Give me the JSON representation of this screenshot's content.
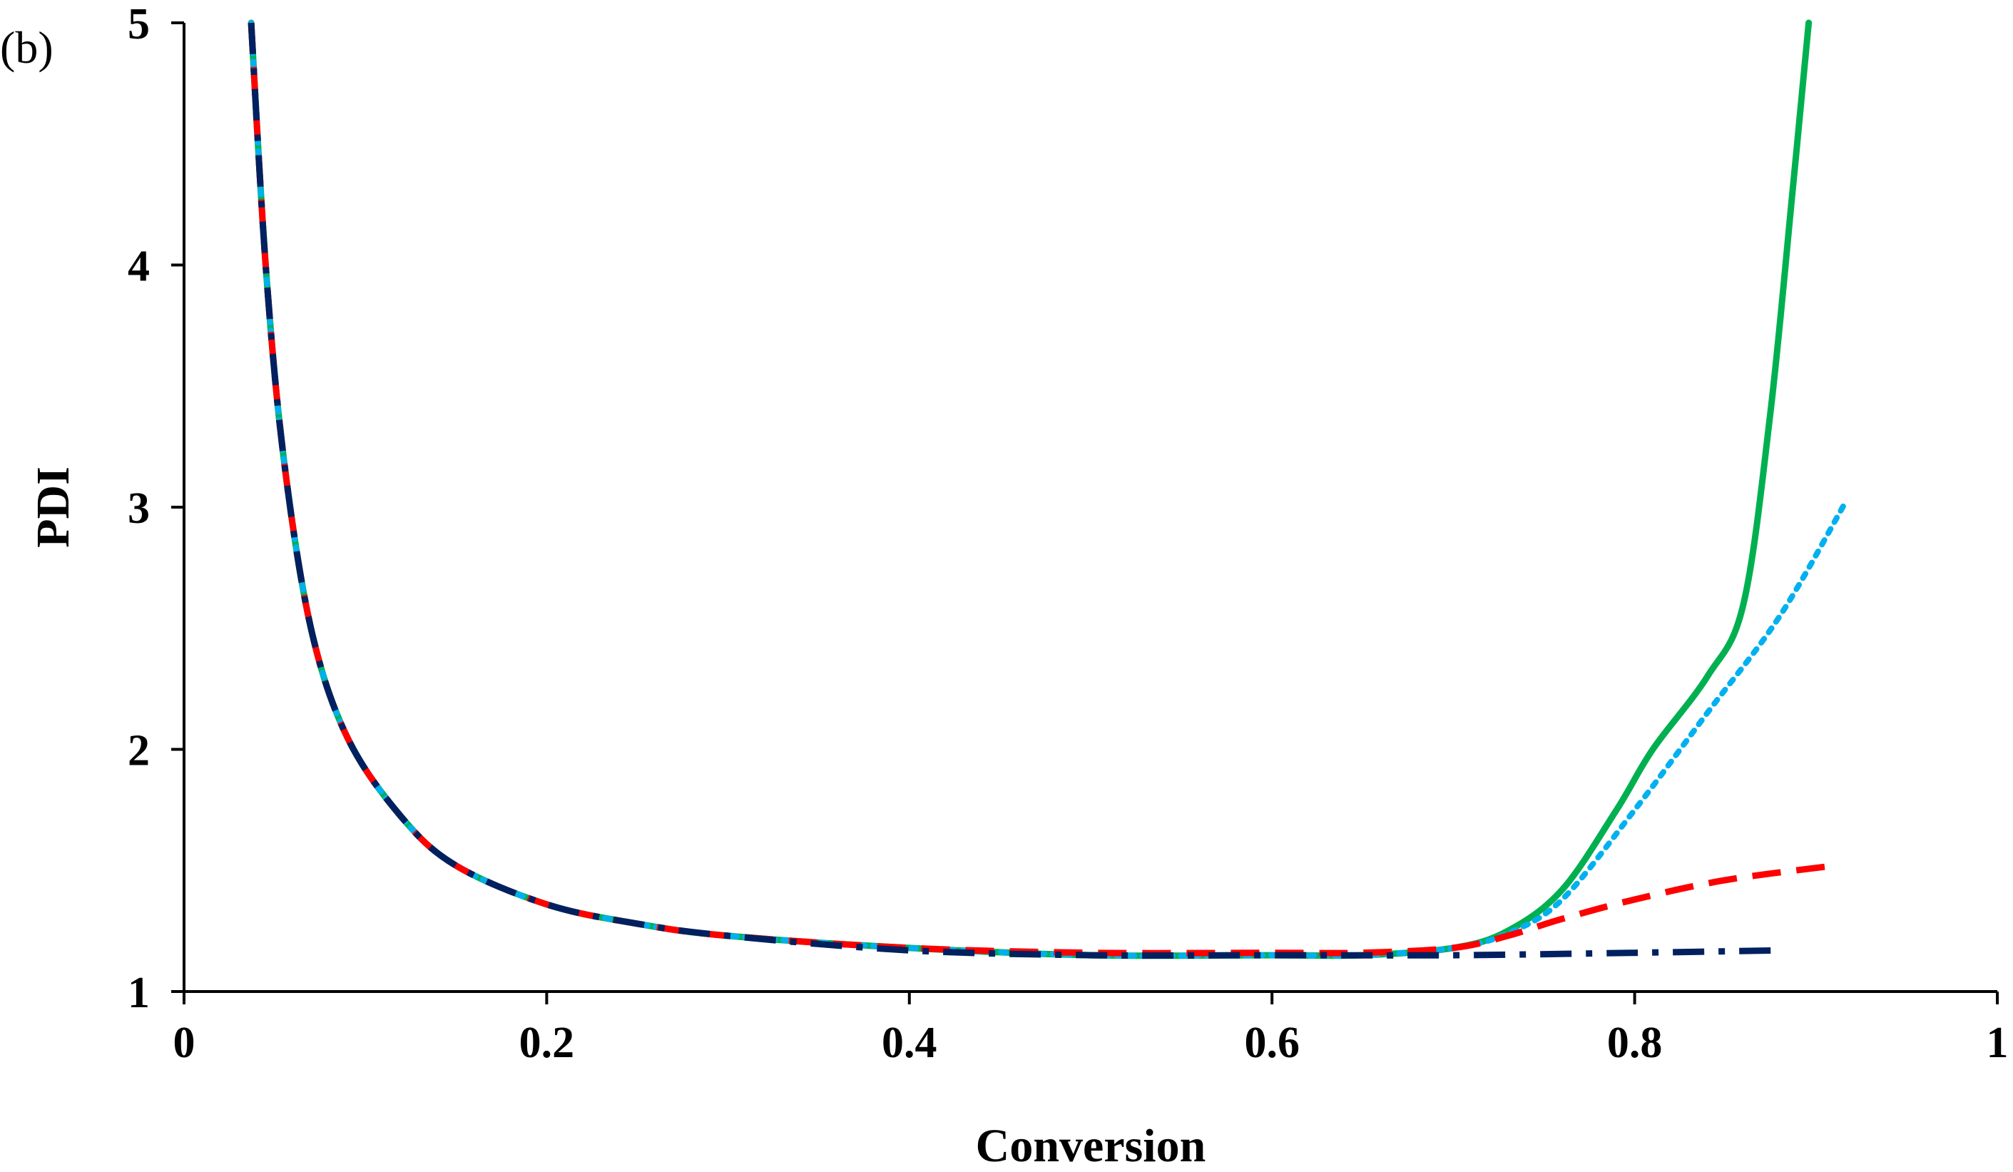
{
  "chart_data": {
    "type": "line",
    "panel_label": "(b)",
    "title": "",
    "xlabel": "Conversion",
    "ylabel": "PDI",
    "xlim": [
      0,
      1
    ],
    "ylim": [
      1,
      5
    ],
    "x_ticks": [
      0,
      0.2,
      0.4,
      0.6,
      0.8,
      1
    ],
    "y_ticks": [
      1,
      2,
      3,
      4,
      5
    ],
    "x_tick_labels": [
      "0",
      "0.2",
      "0.4",
      "0.6",
      "0.8",
      "1"
    ],
    "y_tick_labels": [
      "1",
      "2",
      "3",
      "4",
      "5"
    ],
    "grid": false,
    "legend": "none",
    "series": [
      {
        "color": "#00b050",
        "style": "solid",
        "points": [
          [
            0.037,
            5.0
          ],
          [
            0.045,
            4.0
          ],
          [
            0.055,
            3.2
          ],
          [
            0.07,
            2.5
          ],
          [
            0.09,
            2.05
          ],
          [
            0.12,
            1.72
          ],
          [
            0.15,
            1.52
          ],
          [
            0.2,
            1.36
          ],
          [
            0.25,
            1.28
          ],
          [
            0.3,
            1.23
          ],
          [
            0.4,
            1.18
          ],
          [
            0.5,
            1.15
          ],
          [
            0.6,
            1.15
          ],
          [
            0.65,
            1.15
          ],
          [
            0.7,
            1.18
          ],
          [
            0.73,
            1.25
          ],
          [
            0.76,
            1.42
          ],
          [
            0.79,
            1.75
          ],
          [
            0.81,
            2.0
          ],
          [
            0.84,
            2.3
          ],
          [
            0.86,
            2.6
          ],
          [
            0.875,
            3.4
          ],
          [
            0.887,
            4.3
          ],
          [
            0.896,
            5.0
          ]
        ]
      },
      {
        "color": "#00b0f0",
        "style": "dotted",
        "points": [
          [
            0.037,
            5.0
          ],
          [
            0.045,
            4.0
          ],
          [
            0.055,
            3.2
          ],
          [
            0.07,
            2.5
          ],
          [
            0.09,
            2.05
          ],
          [
            0.12,
            1.72
          ],
          [
            0.15,
            1.52
          ],
          [
            0.2,
            1.36
          ],
          [
            0.25,
            1.28
          ],
          [
            0.3,
            1.23
          ],
          [
            0.4,
            1.18
          ],
          [
            0.5,
            1.15
          ],
          [
            0.6,
            1.15
          ],
          [
            0.65,
            1.15
          ],
          [
            0.7,
            1.18
          ],
          [
            0.73,
            1.24
          ],
          [
            0.76,
            1.38
          ],
          [
            0.8,
            1.75
          ],
          [
            0.84,
            2.15
          ],
          [
            0.88,
            2.55
          ],
          [
            0.917,
            3.03
          ]
        ]
      },
      {
        "color": "#ff0000",
        "style": "dashed",
        "points": [
          [
            0.037,
            5.0
          ],
          [
            0.045,
            4.0
          ],
          [
            0.055,
            3.2
          ],
          [
            0.07,
            2.5
          ],
          [
            0.09,
            2.05
          ],
          [
            0.12,
            1.72
          ],
          [
            0.15,
            1.52
          ],
          [
            0.2,
            1.36
          ],
          [
            0.25,
            1.28
          ],
          [
            0.3,
            1.23
          ],
          [
            0.4,
            1.18
          ],
          [
            0.5,
            1.16
          ],
          [
            0.6,
            1.16
          ],
          [
            0.65,
            1.16
          ],
          [
            0.7,
            1.18
          ],
          [
            0.73,
            1.23
          ],
          [
            0.76,
            1.3
          ],
          [
            0.8,
            1.38
          ],
          [
            0.85,
            1.46
          ],
          [
            0.91,
            1.52
          ]
        ]
      },
      {
        "color": "#002060",
        "style": "dashdot",
        "points": [
          [
            0.037,
            5.0
          ],
          [
            0.045,
            4.0
          ],
          [
            0.055,
            3.2
          ],
          [
            0.07,
            2.5
          ],
          [
            0.09,
            2.05
          ],
          [
            0.12,
            1.72
          ],
          [
            0.15,
            1.52
          ],
          [
            0.2,
            1.36
          ],
          [
            0.25,
            1.28
          ],
          [
            0.3,
            1.23
          ],
          [
            0.4,
            1.17
          ],
          [
            0.5,
            1.15
          ],
          [
            0.6,
            1.15
          ],
          [
            0.7,
            1.15
          ],
          [
            0.8,
            1.16
          ],
          [
            0.88,
            1.17
          ]
        ]
      }
    ]
  }
}
